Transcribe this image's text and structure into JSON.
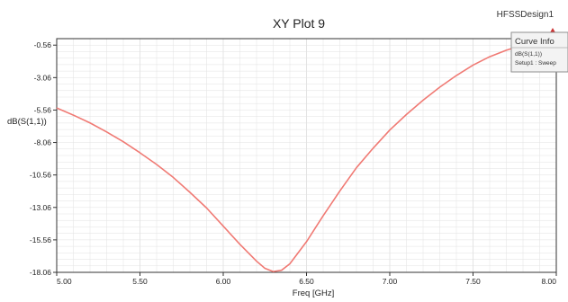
{
  "header": {
    "title": "XY Plot 9",
    "design_name": "HFSSDesign1"
  },
  "legend": {
    "title": "Curve Info",
    "entry_name": "dB(S(1,1))",
    "entry_setup": "Setup1 : Sweep"
  },
  "colors": {
    "curve": "#f07a74",
    "grid": "#e2e2e2",
    "axis": "#333333",
    "legend_bg": "#f3f3f3"
  },
  "icons": [
    "ansys-logo-icon"
  ],
  "chart_data": {
    "type": "line",
    "title": "XY Plot 9",
    "xlabel": "Freq [GHz]",
    "ylabel": "dB(S(1,1))",
    "xlim": [
      5.0,
      8.0
    ],
    "ylim": [
      -18.06,
      -0.06
    ],
    "x_tick_labels": [
      "5.00",
      "5.50",
      "6.00",
      "6.50",
      "7.00",
      "7.50",
      "8.00"
    ],
    "y_tick_labels": [
      "-0.56",
      "-3.06",
      "-5.56",
      "-8.06",
      "-10.56",
      "-13.06",
      "-15.56",
      "-18.06"
    ],
    "grid": true,
    "legend_position": "top-right",
    "series": [
      {
        "name": "dB(S(1,1))",
        "x": [
          5.0,
          5.1,
          5.2,
          5.3,
          5.4,
          5.5,
          5.6,
          5.7,
          5.8,
          5.9,
          6.0,
          6.1,
          6.2,
          6.25,
          6.3,
          6.35,
          6.4,
          6.5,
          6.6,
          6.7,
          6.8,
          6.9,
          7.0,
          7.1,
          7.2,
          7.3,
          7.4,
          7.5,
          7.6,
          7.7,
          7.8
        ],
        "y": [
          -5.4,
          -5.95,
          -6.55,
          -7.25,
          -8.0,
          -8.85,
          -9.75,
          -10.75,
          -11.9,
          -13.1,
          -14.5,
          -15.9,
          -17.2,
          -17.75,
          -18.0,
          -17.9,
          -17.4,
          -15.7,
          -13.7,
          -11.8,
          -10.0,
          -8.5,
          -7.1,
          -5.9,
          -4.8,
          -3.8,
          -2.9,
          -2.1,
          -1.45,
          -0.95,
          -0.55
        ]
      }
    ]
  }
}
